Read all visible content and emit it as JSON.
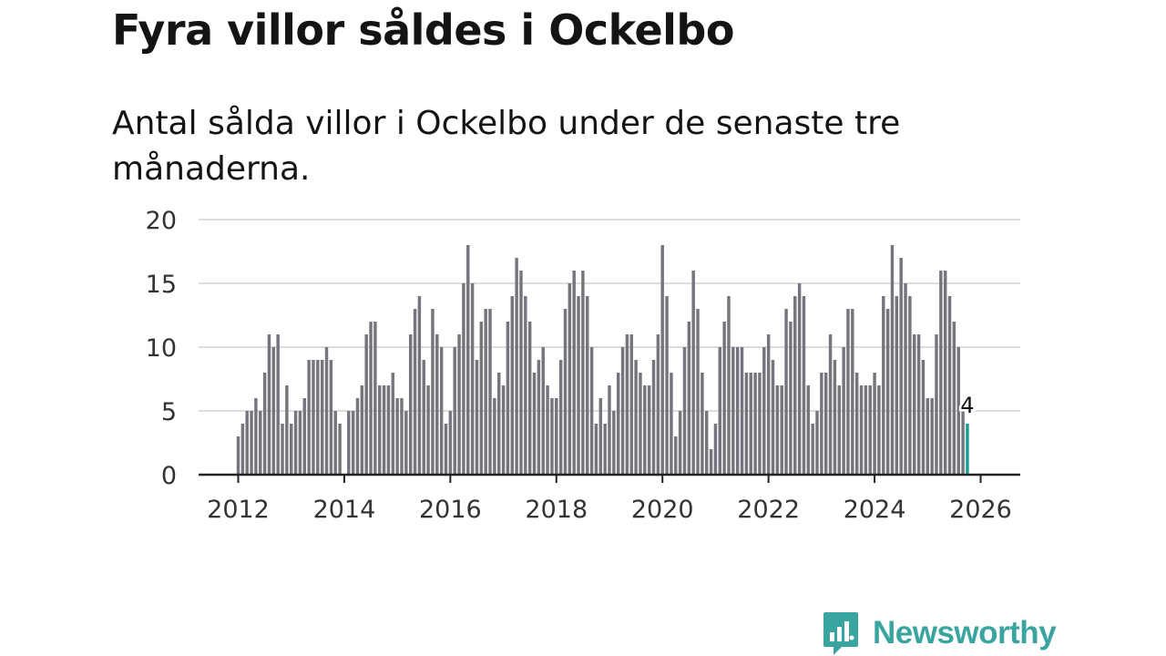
{
  "title": "Fyra villor såldes i Ockelbo",
  "subtitle": "Antal sålda villor i Ockelbo under de senaste tre månaderna.",
  "brand": {
    "name": "Newsworthy",
    "color": "#3aa5a0",
    "icon": "newsworthy-logo-icon"
  },
  "colors": {
    "bar": "#75757d",
    "highlight": "#1a9c96",
    "grid": "#dcdcdc",
    "axis": "#222222"
  },
  "chart_data": {
    "type": "bar",
    "title": "Antal sålda villor i Ockelbo",
    "xlabel": "",
    "ylabel": "",
    "ylim": [
      0,
      20
    ],
    "yticks": [
      0,
      5,
      10,
      15,
      20
    ],
    "xticks": [
      "2012",
      "2014",
      "2016",
      "2018",
      "2020",
      "2022",
      "2024",
      "2026"
    ],
    "start": "2012-01",
    "end": "2026-01",
    "values": [
      3,
      4,
      5,
      5,
      6,
      5,
      8,
      11,
      10,
      11,
      4,
      7,
      4,
      5,
      5,
      6,
      9,
      9,
      9,
      9,
      10,
      9,
      5,
      4,
      0,
      5,
      5,
      6,
      7,
      11,
      12,
      12,
      7,
      7,
      7,
      8,
      6,
      6,
      5,
      11,
      13,
      14,
      9,
      7,
      13,
      11,
      10,
      4,
      5,
      10,
      11,
      15,
      18,
      15,
      9,
      12,
      13,
      13,
      6,
      8,
      7,
      12,
      14,
      17,
      16,
      14,
      12,
      8,
      9,
      10,
      7,
      6,
      6,
      9,
      13,
      15,
      16,
      14,
      16,
      14,
      10,
      4,
      6,
      4,
      7,
      5,
      8,
      10,
      11,
      11,
      9,
      8,
      7,
      7,
      9,
      11,
      18,
      14,
      8,
      3,
      5,
      10,
      12,
      16,
      13,
      8,
      5,
      2,
      4,
      10,
      12,
      14,
      10,
      10,
      10,
      8,
      8,
      8,
      8,
      10,
      11,
      9,
      7,
      7,
      13,
      12,
      14,
      15,
      14,
      7,
      4,
      5,
      8,
      8,
      11,
      9,
      7,
      10,
      13,
      13,
      8,
      7,
      7,
      7,
      8,
      7,
      14,
      13,
      18,
      14,
      17,
      15,
      14,
      11,
      11,
      9,
      6,
      6,
      11,
      16,
      16,
      14,
      12,
      10,
      5,
      4
    ],
    "highlight": {
      "label": "2026-01",
      "value": 4,
      "annotation": "4"
    }
  }
}
